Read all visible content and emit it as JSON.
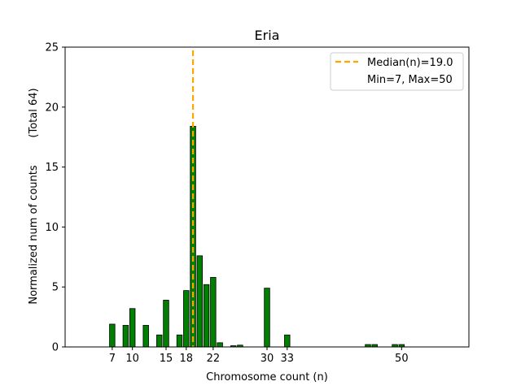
{
  "chart_data": {
    "type": "bar",
    "title": "Eria",
    "xlabel": "Chromosome count (n)",
    "ylabel": "Normalized num of counts",
    "ylabel_note": "(Total 64)",
    "xlim": [
      0,
      60
    ],
    "ylim": [
      0,
      25
    ],
    "xticks": [
      7,
      10,
      15,
      18,
      22,
      30,
      33,
      50
    ],
    "yticks": [
      0,
      5,
      10,
      15,
      20,
      25
    ],
    "bar_color": "#008000",
    "bar_edge_color": "#000000",
    "median_line_color": "#ffa500",
    "bars": [
      {
        "x": 7,
        "y": 1.9
      },
      {
        "x": 9,
        "y": 1.8
      },
      {
        "x": 10,
        "y": 3.2
      },
      {
        "x": 12,
        "y": 1.8
      },
      {
        "x": 14,
        "y": 1.0
      },
      {
        "x": 15,
        "y": 3.9
      },
      {
        "x": 17,
        "y": 1.0
      },
      {
        "x": 18,
        "y": 4.7
      },
      {
        "x": 19,
        "y": 18.4
      },
      {
        "x": 20,
        "y": 7.6
      },
      {
        "x": 21,
        "y": 5.2
      },
      {
        "x": 22,
        "y": 5.8
      },
      {
        "x": 23,
        "y": 0.35
      },
      {
        "x": 25,
        "y": 0.1
      },
      {
        "x": 26,
        "y": 0.15
      },
      {
        "x": 30,
        "y": 4.9
      },
      {
        "x": 33,
        "y": 1.0
      },
      {
        "x": 45,
        "y": 0.2
      },
      {
        "x": 46,
        "y": 0.2
      },
      {
        "x": 49,
        "y": 0.2
      },
      {
        "x": 50,
        "y": 0.2
      }
    ],
    "median": 19.0,
    "legend": {
      "placement": "top-right",
      "median_label": "Median(n)=19.0",
      "range_label": "Min=7, Max=50"
    }
  }
}
